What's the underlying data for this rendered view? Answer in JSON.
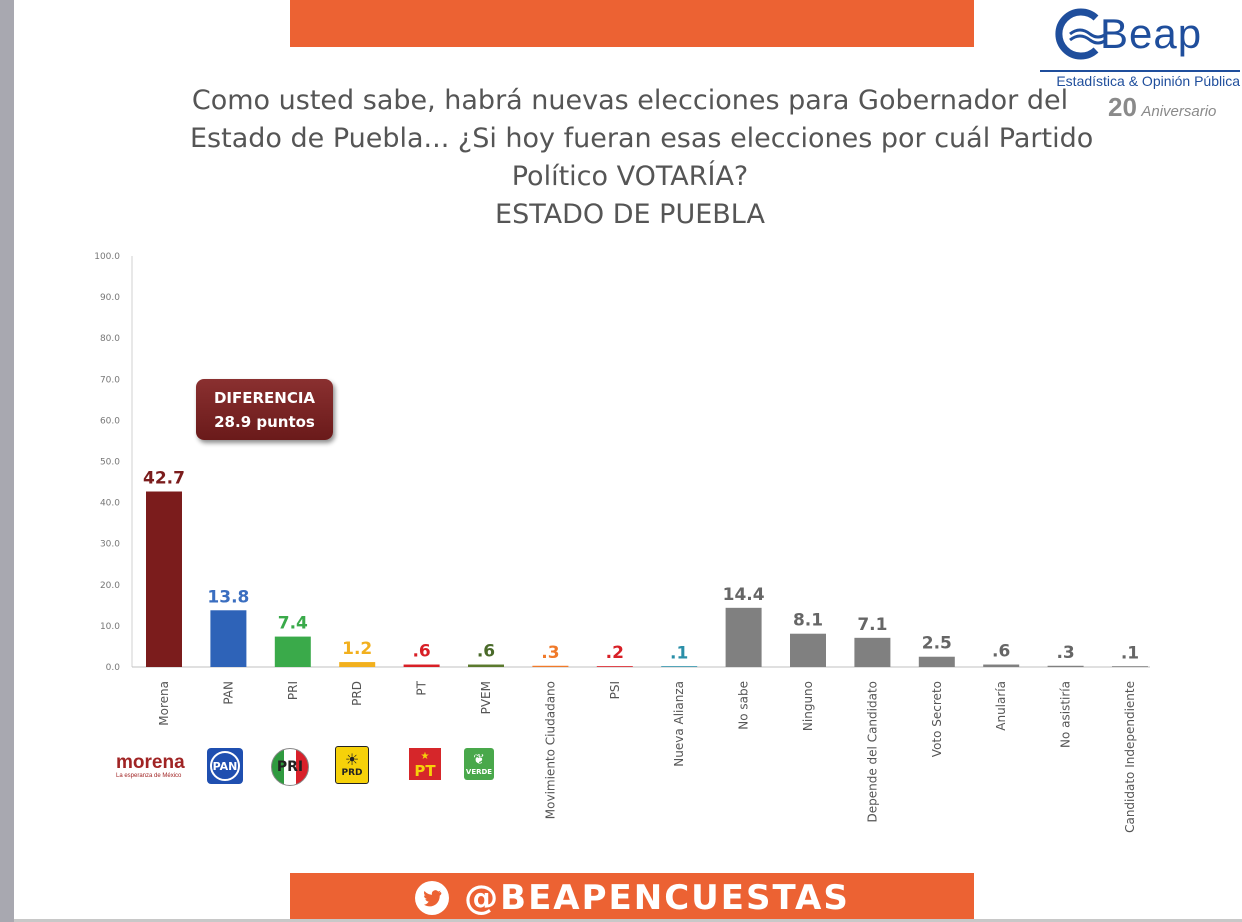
{
  "title_lines": [
    "Como usted sabe, habrá nuevas elecciones para Gobernador del",
    "Estado de Puebla... ¿Si hoy fueran esas elecciones por cuál Partido",
    "Político VOTARÍA?",
    "ESTADO DE PUEBLA"
  ],
  "logo": {
    "word": "Beap",
    "subtitle": "Estadística & Opinión Pública",
    "anniversary_number": "20",
    "anniversary_text": "Aniversario"
  },
  "callout": {
    "line1": "DIFERENCIA",
    "line2": "28.9 puntos"
  },
  "party_logos": {
    "morena": "morena",
    "morena_tagline": "La esperanza de México",
    "pan": "PAN",
    "pri": "PRI",
    "prd": "PRD",
    "pt": "PT",
    "verde": "VERDE"
  },
  "footer": {
    "handle": "@BEAPENCUESTAS",
    "icon": "twitter-bird-icon"
  },
  "colors": {
    "banner": "#ec6233",
    "logo_blue": "#1f4e9c"
  },
  "chart_data": {
    "type": "bar",
    "title": "ESTADO DE PUEBLA",
    "xlabel": "",
    "ylabel": "",
    "ylim": [
      0,
      100
    ],
    "yticks": [
      "0.0",
      "10.0",
      "20.0",
      "30.0",
      "40.0",
      "50.0",
      "60.0",
      "70.0",
      "80.0",
      "90.0",
      "100.0"
    ],
    "categories": [
      "Morena",
      "PAN",
      "PRI",
      "PRD",
      "PT",
      "PVEM",
      "Movimiento Ciudadano",
      "PSI",
      "Nueva Alianza",
      "No sabe",
      "Ninguno",
      "Depende del Candidato",
      "Voto Secreto",
      "Anularía",
      "No asistiría",
      "Candidato Independiente"
    ],
    "values": [
      42.7,
      13.8,
      7.4,
      1.2,
      0.6,
      0.6,
      0.3,
      0.2,
      0.1,
      14.4,
      8.1,
      7.1,
      2.5,
      0.6,
      0.3,
      0.1
    ],
    "labels": [
      "42.7",
      "13.8",
      "7.4",
      "1.2",
      ".6",
      ".6",
      ".3",
      ".2",
      ".1",
      "14.4",
      "8.1",
      "7.1",
      "2.5",
      ".6",
      ".3",
      ".1"
    ],
    "colors": [
      "#7b1c1c",
      "#2e63b8",
      "#3aaa4a",
      "#f2b01e",
      "#d81f26",
      "#5b7a2e",
      "#f07a2a",
      "#d81f26",
      "#2a8fa8",
      "#808080",
      "#808080",
      "#808080",
      "#808080",
      "#808080",
      "#808080",
      "#808080"
    ],
    "label_colors": [
      "#7b1c1c",
      "#3a6ec0",
      "#3aaa4a",
      "#f2b01e",
      "#d81f26",
      "#4a6a2a",
      "#f07a2a",
      "#d81f26",
      "#2a8fa8",
      "#666666",
      "#666666",
      "#666666",
      "#666666",
      "#666666",
      "#666666",
      "#666666"
    ]
  }
}
